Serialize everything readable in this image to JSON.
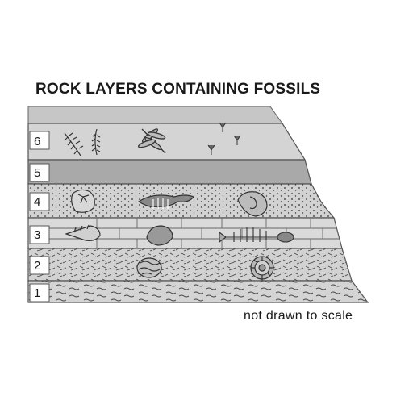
{
  "title": "ROCK LAYERS CONTAINING FOSSILS",
  "note": "not drawn to scale",
  "layers": [
    {
      "label": "1",
      "fossils": []
    },
    {
      "label": "2",
      "fossils": [
        "coral-fossil",
        "ammonite-fossil"
      ]
    },
    {
      "label": "3",
      "fossils": [
        "spiral-shell-fossil",
        "clam-fossil",
        "fish-skeleton-fossil"
      ]
    },
    {
      "label": "4",
      "fossils": [
        "sand-dollar-fossil",
        "fish-skeleton-fossil",
        "snail-shell-fossil"
      ]
    },
    {
      "label": "5",
      "fossils": []
    },
    {
      "label": "6",
      "fossils": [
        "fern-leaf-fossil",
        "dragonfly-fossil",
        "footprints-fossil"
      ]
    }
  ],
  "colors": {
    "layer_fill": "#d4d4d4",
    "layer5_fill": "#a8a8a8",
    "top_fill": "#c4c4c4",
    "outline": "#555555"
  }
}
